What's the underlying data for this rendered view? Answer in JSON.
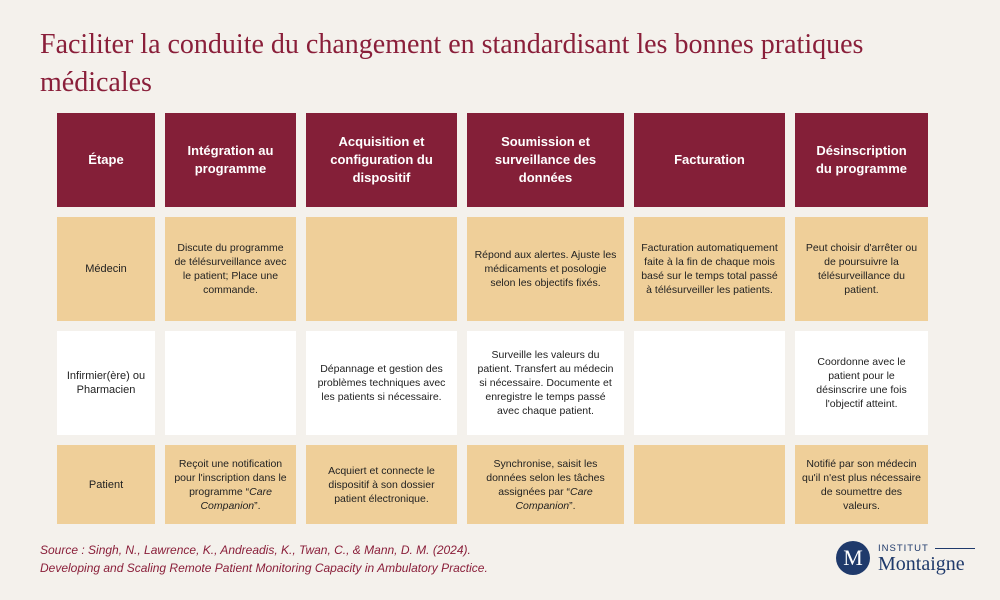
{
  "title": "Faciliter la conduite du changement en standardisant les bonnes pratiques médicales",
  "headers": [
    "Étape",
    "Intégration au programme",
    "Acquisition et configuration du dispositif",
    "Soumission et surveillance des données",
    "Facturation",
    "Désinscription du programme"
  ],
  "rows": [
    {
      "label": "Médecin",
      "cells": [
        "Discute du programme de télésurveillance avec le patient; Place une commande.",
        "",
        "Répond aux alertes. Ajuste les médicaments et posologie selon les objectifs fixés.",
        "Facturation automatiquement faite à la fin de chaque mois basé sur le temps total passé à télésurveiller les patients.",
        "Peut choisir d'arrêter ou de poursuivre la télésurveillance du patient."
      ]
    },
    {
      "label": "Infirmier(ère) ou Pharmacien",
      "cells": [
        "",
        "Dépannage et gestion des problèmes techniques avec les patients si nécessaire.",
        "Surveille les valeurs du patient. Transfert au médecin si nécessaire. Documente et enregistre le temps passé avec chaque patient.",
        "",
        "Coordonne avec le patient pour le désinscrire une fois l'objectif atteint."
      ]
    },
    {
      "label": "Patient",
      "cells": [
        "Reçoit une notification pour l'inscription dans le programme “Care Companion”.",
        "Acquiert et connecte le dispositif à son dossier patient électronique.",
        "Synchronise, saisit les données selon les tâches assignées par “Care Companion”.",
        "",
        "Notifié par son médecin qu'il n'est plus nécessaire de soumettre des valeurs."
      ]
    }
  ],
  "source": {
    "line1": "Source : Singh, N., Lawrence, K., Andreadis, K., Twan, C., & Mann, D. M. (2024).",
    "line2": "Developing and Scaling Remote Patient Monitoring Capacity in Ambulatory Practice."
  },
  "logo": {
    "letter": "M",
    "top": "INSTITUT",
    "bottom": "Montaigne"
  },
  "colors": {
    "header": "#841f38",
    "tan": "#efcf99",
    "title": "#8a1f3a",
    "background": "#f4f1ec",
    "logo": "#1f3a6b"
  }
}
